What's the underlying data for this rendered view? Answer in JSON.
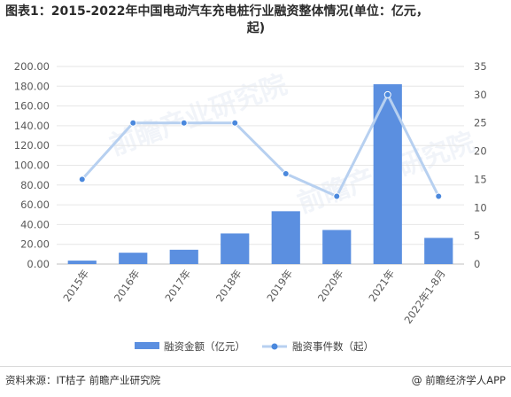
{
  "title": {
    "line1": "图表1：2015-2022年中国电动汽车充电桩行业融资整体情况(单位：亿元，",
    "line2": "起)"
  },
  "watermarks": [
    "前瞻产业研究院",
    "前瞻产业研究院"
  ],
  "footer": {
    "source": "资料来源：IT桔子 前瞻产业研究院",
    "brand_icon": "at-icon",
    "brand": "前瞻经济学人APP"
  },
  "colors": {
    "bar": "#5b8fe0",
    "line": "#b7d0f0",
    "marker": "#4a88dd",
    "grid": "#e6e6e6",
    "axis_text": "#595959"
  },
  "chart_data": {
    "type": "bar",
    "categories": [
      "2015年",
      "2016年",
      "2017年",
      "2018年",
      "2019年",
      "2020年",
      "2021年",
      "2022年1-8月"
    ],
    "series": [
      {
        "name": "融资金额（亿元）",
        "type": "bar",
        "axis": "left",
        "values": [
          3.5,
          11.5,
          14.5,
          31,
          53.5,
          34.5,
          182,
          26.5
        ]
      },
      {
        "name": "融资事件数（起）",
        "type": "line",
        "axis": "right",
        "values": [
          15,
          25,
          25,
          25,
          16,
          12,
          30,
          12
        ]
      }
    ],
    "y_left": {
      "min": 0,
      "max": 200,
      "step": 20,
      "ticks": [
        "0.00",
        "20.00",
        "40.00",
        "60.00",
        "80.00",
        "100.00",
        "120.00",
        "140.00",
        "160.00",
        "180.00",
        "200.00"
      ]
    },
    "y_right": {
      "min": 0,
      "max": 35,
      "step": 5,
      "ticks": [
        "0",
        "5",
        "10",
        "15",
        "20",
        "25",
        "30",
        "35"
      ]
    },
    "grid": true,
    "legend_position": "bottom"
  }
}
